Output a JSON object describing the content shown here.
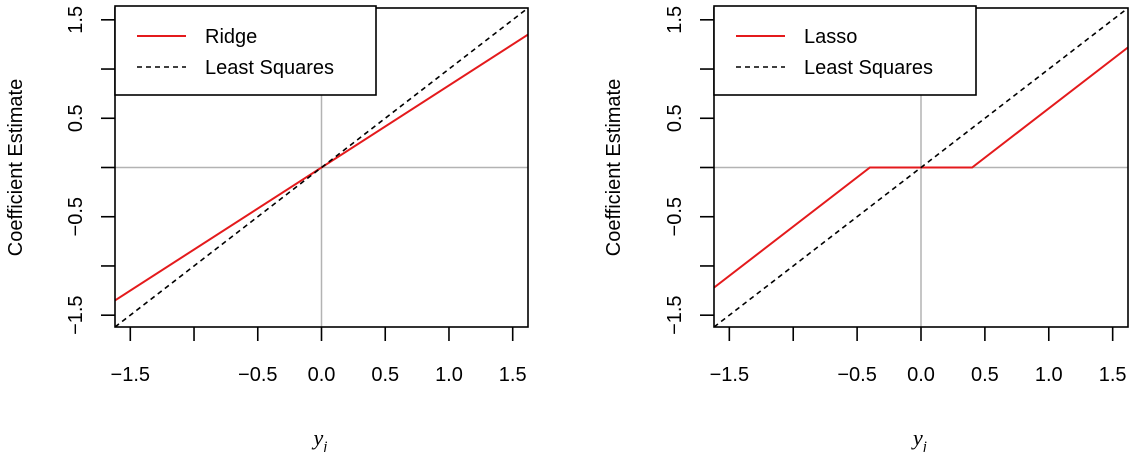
{
  "chart_data": [
    {
      "type": "line",
      "title": "",
      "xlabel": "y_j",
      "xlabel_main": "y",
      "xlabel_sub": "j",
      "ylabel": "Coefficient Estimate",
      "xlim": [
        -1.62,
        1.62
      ],
      "ylim": [
        -1.62,
        1.62
      ],
      "x_ticks": [
        -1.5,
        -1.0,
        -0.5,
        0.0,
        0.5,
        1.0,
        1.5
      ],
      "x_tick_labels": [
        "−1.5",
        "",
        "−0.5",
        "0.0",
        "0.5",
        "1.0",
        "1.5"
      ],
      "y_ticks": [
        -1.5,
        -1.0,
        -0.5,
        0.0,
        0.5,
        1.0,
        1.5
      ],
      "y_tick_labels": [
        "−1.5",
        "",
        "−0.5",
        "",
        "0.5",
        "",
        "1.5"
      ],
      "reference_lines": {
        "x": 0,
        "y": 0,
        "color": "#b3b3b3"
      },
      "legend_position": "top-left",
      "series": [
        {
          "name": "Ridge",
          "color": "#e41a1c",
          "style": "solid",
          "x": [
            -1.62,
            1.62
          ],
          "y": [
            -1.35,
            1.35
          ]
        },
        {
          "name": "Least Squares",
          "color": "#000000",
          "style": "dashed",
          "x": [
            -1.62,
            1.62
          ],
          "y": [
            -1.62,
            1.62
          ]
        }
      ]
    },
    {
      "type": "line",
      "title": "",
      "xlabel": "y_j",
      "xlabel_main": "y",
      "xlabel_sub": "j",
      "ylabel": "Coefficient Estimate",
      "xlim": [
        -1.62,
        1.62
      ],
      "ylim": [
        -1.62,
        1.62
      ],
      "x_ticks": [
        -1.5,
        -1.0,
        -0.5,
        0.0,
        0.5,
        1.0,
        1.5
      ],
      "x_tick_labels": [
        "−1.5",
        "",
        "−0.5",
        "0.0",
        "0.5",
        "1.0",
        "1.5"
      ],
      "y_ticks": [
        -1.5,
        -1.0,
        -0.5,
        0.0,
        0.5,
        1.0,
        1.5
      ],
      "y_tick_labels": [
        "−1.5",
        "",
        "−0.5",
        "",
        "0.5",
        "",
        "1.5"
      ],
      "reference_lines": {
        "x": 0,
        "y": 0,
        "color": "#b3b3b3"
      },
      "legend_position": "top-left",
      "series": [
        {
          "name": "Lasso",
          "color": "#e41a1c",
          "style": "solid",
          "x": [
            -1.62,
            -0.4,
            0.4,
            1.62
          ],
          "y": [
            -1.22,
            0.0,
            0.0,
            1.22
          ]
        },
        {
          "name": "Least Squares",
          "color": "#000000",
          "style": "dashed",
          "x": [
            -1.62,
            1.62
          ],
          "y": [
            -1.62,
            1.62
          ]
        }
      ]
    }
  ]
}
